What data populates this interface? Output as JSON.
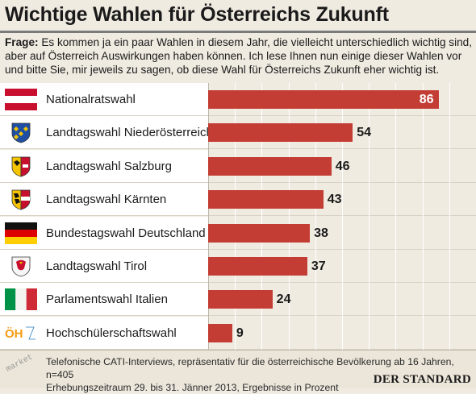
{
  "header": {
    "title": "Wichtige Wahlen für Österreichs Zukunft",
    "question_label": "Frage:",
    "question_text": " Es kommen ja ein paar Wahlen in diesem Jahr, die vielleicht unterschiedlich wichtig sind, aber auf Österreich Auswirkungen haben können. Ich lese Ihnen nun einige dieser Wahlen vor und bitte Sie, mir jeweils zu sagen, ob diese Wahl für Österreichs Zukunft eher wichtig ist."
  },
  "chart_data": {
    "type": "bar",
    "orientation": "horizontal",
    "categories": [
      "Nationalratswahl",
      "Landtagswahl Niederösterreich",
      "Landtagswahl Salzburg",
      "Landtagswahl Kärnten",
      "Bundestagswahl Deutschland",
      "Landtagswahl Tirol",
      "Parlamentswahl Italien",
      "Hochschülerschaftswahl"
    ],
    "values": [
      86,
      54,
      46,
      43,
      38,
      37,
      24,
      9
    ],
    "data_labels": [
      "86",
      "54",
      "46",
      "43",
      "38",
      "37",
      "24",
      "9"
    ],
    "xlim": [
      0,
      100
    ],
    "grid": true,
    "bar_color": "#c33d35",
    "icons": [
      "austria-flag-icon",
      "lower-austria-coat-of-arms-icon",
      "salzburg-coat-of-arms-icon",
      "carinthia-coat-of-arms-icon",
      "germany-flag-icon",
      "tyrol-coat-of-arms-icon",
      "italy-flag-icon",
      "oeh-logo-icon"
    ]
  },
  "footer": {
    "source_line1": "Telefonische CATI-Interviews, repräsentativ für die österreichische Bevölkerung ab 16 Jahren, n=405",
    "source_line2": "Erhebungszeitraum 29. bis 31. Jänner 2013, Ergebnisse in Prozent",
    "brand": "DER STANDARD",
    "institute": "market"
  }
}
